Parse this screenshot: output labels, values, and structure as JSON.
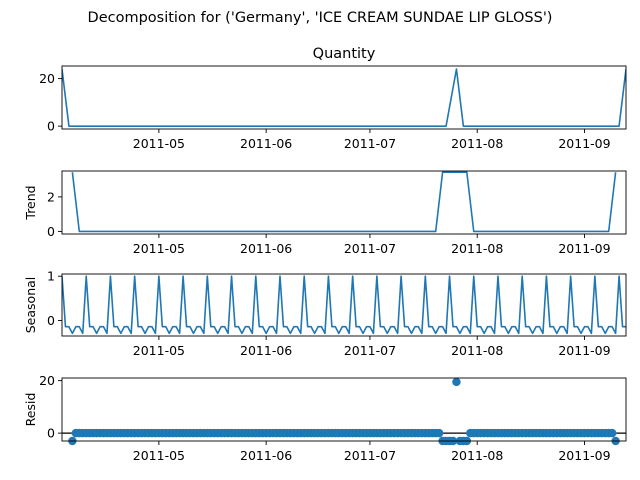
{
  "figure": {
    "suptitle": "Decomposition for ('Germany', 'ICE CREAM SUNDAE LIP GLOSS')"
  },
  "colors": {
    "line": "#1f77b4",
    "axis": "#000000",
    "zero_line": "#000000"
  },
  "chart_data": [
    {
      "type": "line",
      "title": "Quantity",
      "ylabel": "",
      "x_start": "2011-04-03",
      "x_end": "2011-09-13",
      "ylim": [
        -1.2,
        25.3
      ],
      "yticks": [
        0,
        20
      ],
      "xticks": [
        "2011-05",
        "2011-06",
        "2011-07",
        "2011-08",
        "2011-09"
      ],
      "series": [
        {
          "x": [
            "2011-04-03",
            "2011-04-05",
            "2011-07-23",
            "2011-07-26",
            "2011-07-28",
            "2011-09-11",
            "2011-09-13"
          ],
          "values": [
            24,
            0,
            0,
            24,
            0,
            0,
            24
          ]
        }
      ]
    },
    {
      "type": "line",
      "title": "",
      "ylabel": "Trend",
      "x_start": "2011-04-03",
      "x_end": "2011-09-13",
      "ylim": [
        -0.15,
        3.5
      ],
      "yticks": [
        0,
        2
      ],
      "xticks": [
        "2011-05",
        "2011-06",
        "2011-07",
        "2011-08",
        "2011-09"
      ],
      "series": [
        {
          "x": [
            "2011-04-06",
            "2011-04-08",
            "2011-07-20",
            "2011-07-22",
            "2011-07-29",
            "2011-07-31",
            "2011-09-08",
            "2011-09-10"
          ],
          "values": [
            3.43,
            0,
            0,
            3.43,
            3.43,
            0,
            0,
            3.43
          ]
        }
      ]
    },
    {
      "type": "line",
      "title": "",
      "ylabel": "Seasonal",
      "x_start": "2011-04-03",
      "x_end": "2011-09-13",
      "ylim": [
        -0.35,
        1.05
      ],
      "yticks": [
        0,
        1
      ],
      "xticks": [
        "2011-05",
        "2011-06",
        "2011-07",
        "2011-08",
        "2011-09"
      ],
      "period_days": 7,
      "first_peak": "2011-04-03",
      "weekly_pattern": [
        1.0,
        -0.14,
        -0.14,
        -0.29,
        -0.14,
        -0.14,
        -0.29
      ]
    },
    {
      "type": "scatter",
      "title": "",
      "ylabel": "Resid",
      "x_start": "2011-04-03",
      "x_end": "2011-09-13",
      "ylim": [
        -3.0,
        21.0
      ],
      "yticks": [
        0,
        20
      ],
      "xticks": [
        "2011-05",
        "2011-06",
        "2011-07",
        "2011-08",
        "2011-09"
      ],
      "baseline": 0,
      "base_points": {
        "start": "2011-04-06",
        "end": "2011-09-10",
        "value": 0
      },
      "low_points": [
        {
          "x": "2011-04-06",
          "y": -3
        },
        {
          "x": "2011-07-22",
          "y": -3
        },
        {
          "x": "2011-07-23",
          "y": -3
        },
        {
          "x": "2011-07-24",
          "y": -3
        },
        {
          "x": "2011-07-25",
          "y": -3
        },
        {
          "x": "2011-07-27",
          "y": -3
        },
        {
          "x": "2011-07-28",
          "y": -3
        },
        {
          "x": "2011-07-29",
          "y": -3
        },
        {
          "x": "2011-09-10",
          "y": -3
        }
      ],
      "high_points": [
        {
          "x": "2011-07-26",
          "y": 19.5
        }
      ]
    }
  ]
}
